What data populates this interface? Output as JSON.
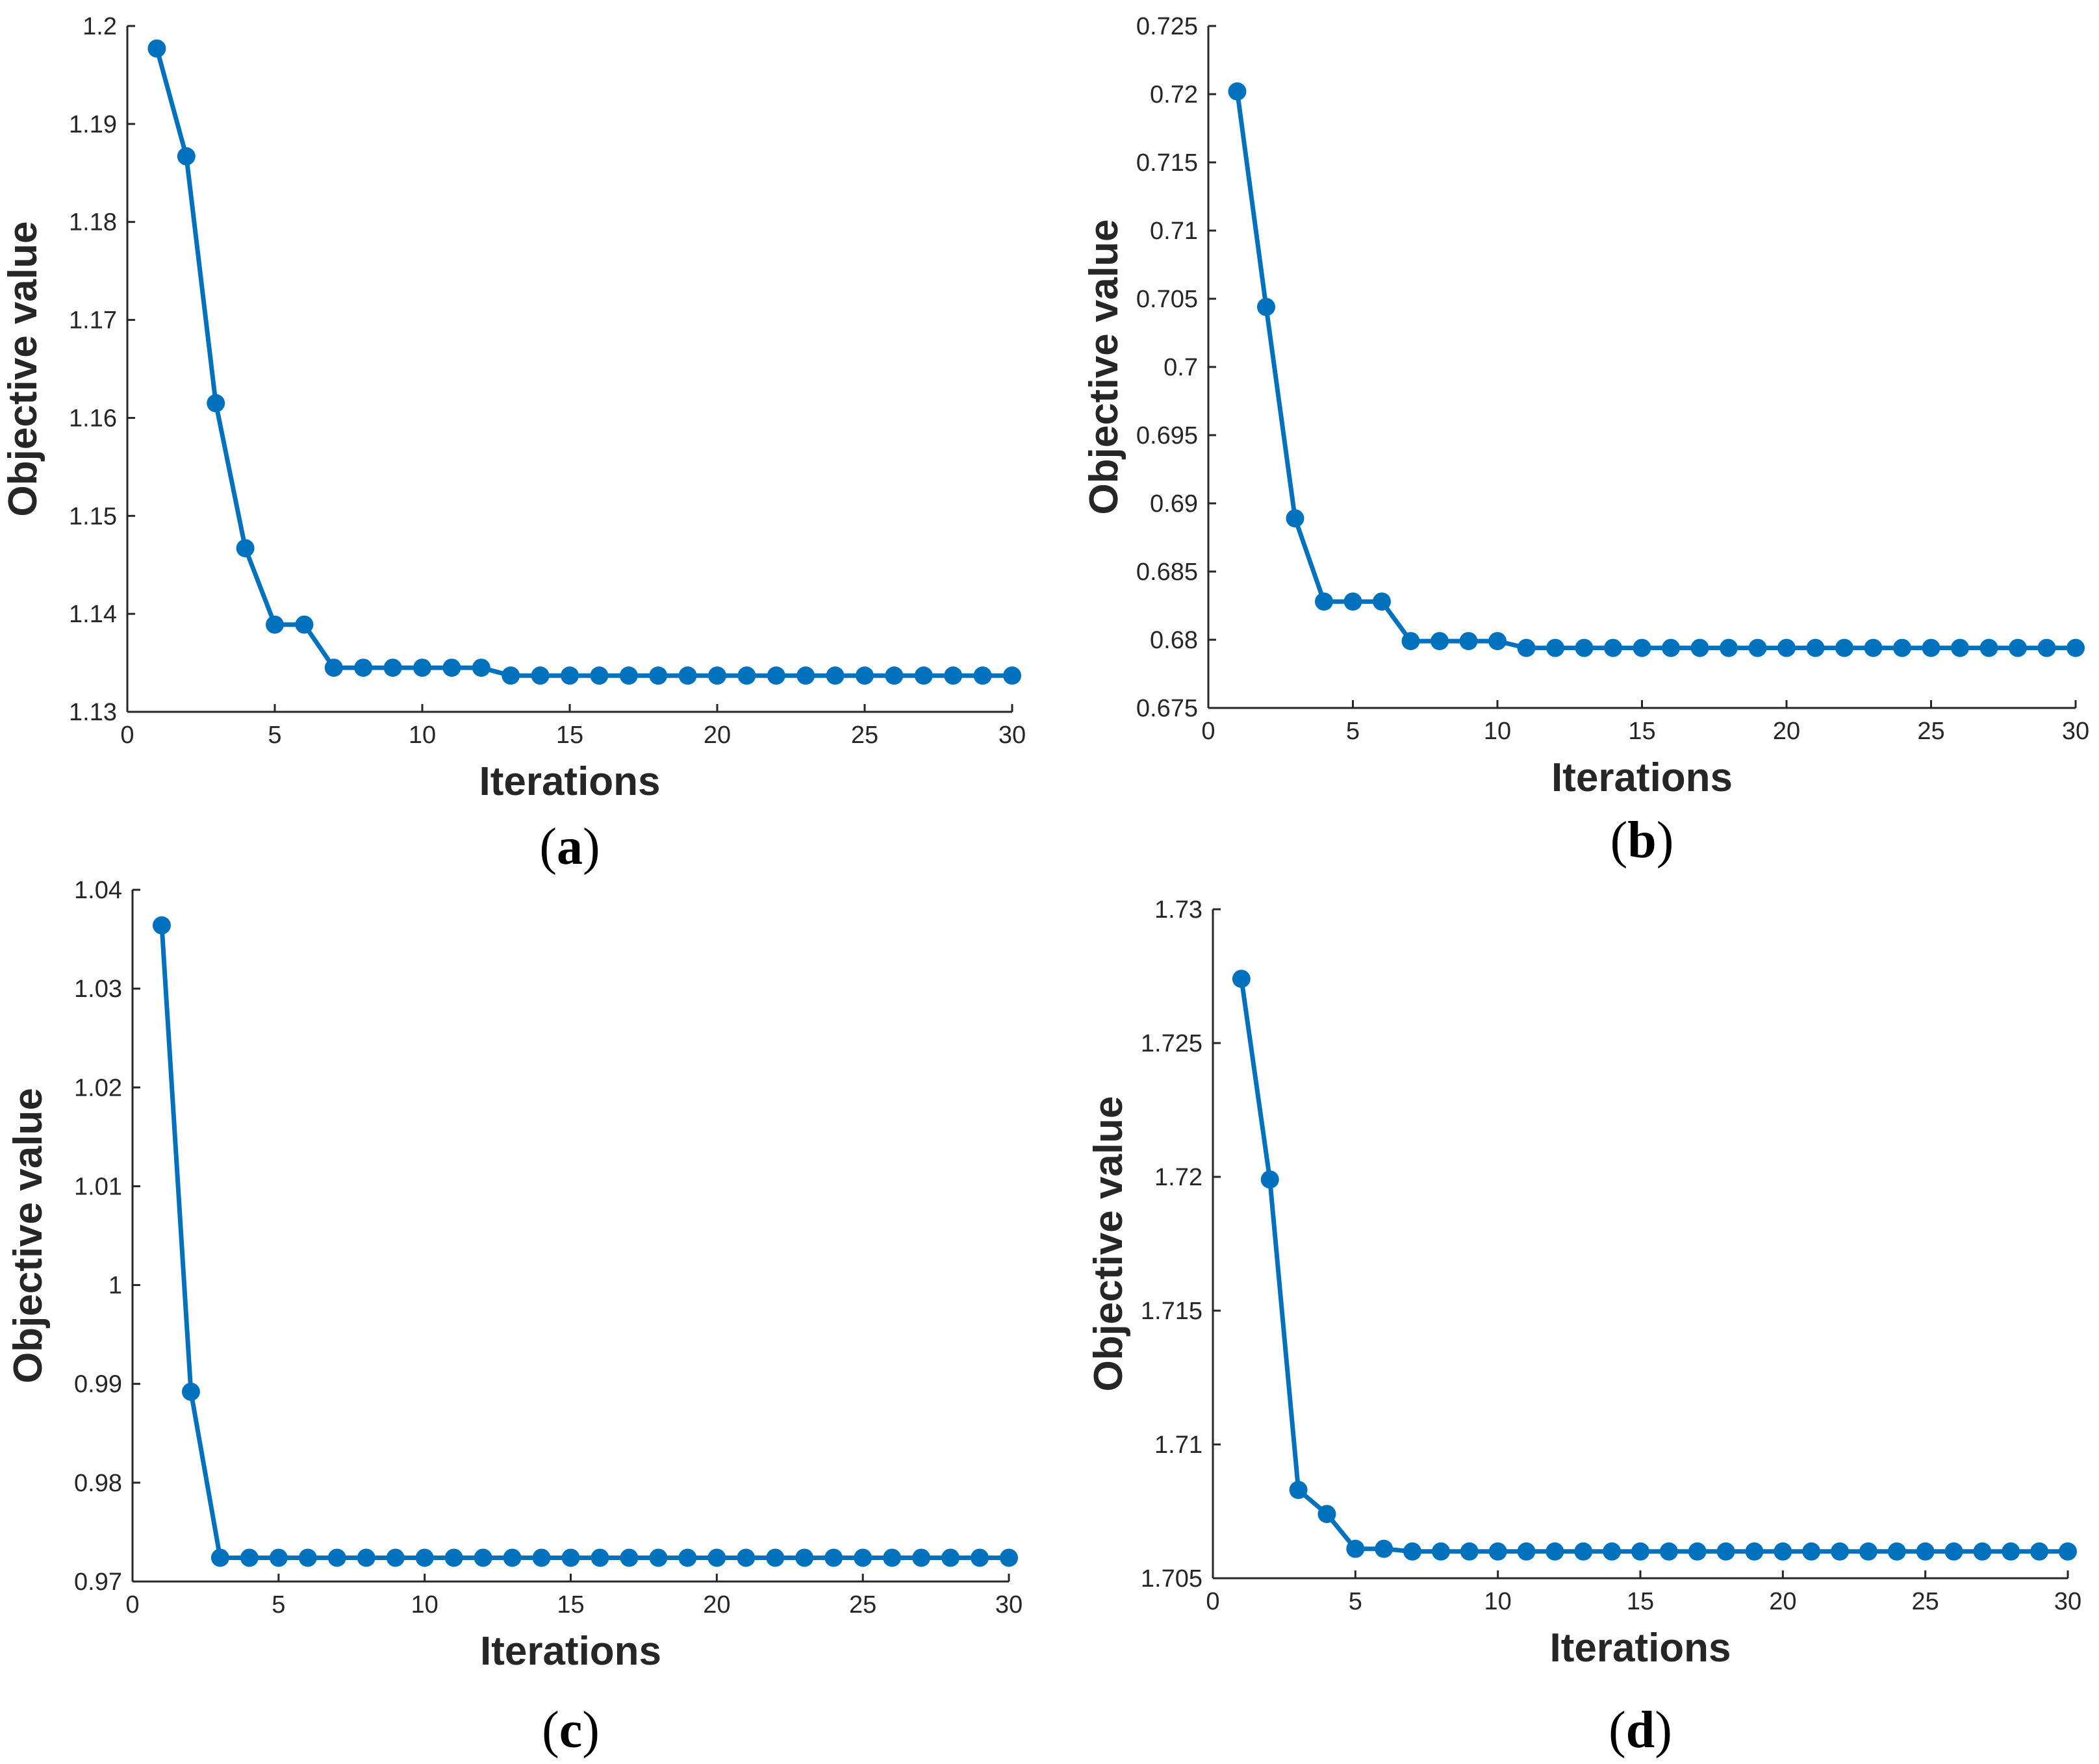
{
  "chart_data": [
    {
      "type": "line",
      "panel_label": "a",
      "xlabel": "Iterations",
      "ylabel": "Objective value",
      "xlim": [
        0,
        30
      ],
      "ylim": [
        1.13,
        1.2
      ],
      "xticks": [
        0,
        5,
        10,
        15,
        20,
        25,
        30
      ],
      "yticks": [
        1.13,
        1.14,
        1.15,
        1.16,
        1.17,
        1.18,
        1.19,
        1.2
      ],
      "ytick_labels": [
        "1.13",
        "1.14",
        "1.15",
        "1.16",
        "1.17",
        "1.18",
        "1.19",
        "1.2"
      ],
      "grid": false,
      "color": "#0072BD",
      "series": [
        {
          "name": "Objective value",
          "x": [
            1,
            2,
            3,
            4,
            5,
            6,
            7,
            8,
            9,
            10,
            11,
            12,
            13,
            14,
            15,
            16,
            17,
            18,
            19,
            20,
            21,
            22,
            23,
            24,
            25,
            26,
            27,
            28,
            29,
            30
          ],
          "values": [
            1.1977,
            1.1867,
            1.1615,
            1.1467,
            1.1389,
            1.1389,
            1.1345,
            1.1345,
            1.1345,
            1.1345,
            1.1345,
            1.1345,
            1.1337,
            1.1337,
            1.1337,
            1.1337,
            1.1337,
            1.1337,
            1.1337,
            1.1337,
            1.1337,
            1.1337,
            1.1337,
            1.1337,
            1.1337,
            1.1337,
            1.1337,
            1.1337,
            1.1337,
            1.1337
          ]
        }
      ]
    },
    {
      "type": "line",
      "panel_label": "b",
      "xlabel": "Iterations",
      "ylabel": "Objective value",
      "xlim": [
        0,
        30
      ],
      "ylim": [
        0.675,
        0.725
      ],
      "xticks": [
        0,
        5,
        10,
        15,
        20,
        25,
        30
      ],
      "yticks": [
        0.675,
        0.68,
        0.685,
        0.69,
        0.695,
        0.7,
        0.705,
        0.71,
        0.715,
        0.72,
        0.725
      ],
      "ytick_labels": [
        "0.675",
        "0.68",
        "0.685",
        "0.69",
        "0.695",
        "0.7",
        "0.705",
        "0.71",
        "0.715",
        "0.72",
        "0.725"
      ],
      "grid": false,
      "color": "#0072BD",
      "series": [
        {
          "name": "Objective value",
          "x": [
            1,
            2,
            3,
            4,
            5,
            6,
            7,
            8,
            9,
            10,
            11,
            12,
            13,
            14,
            15,
            16,
            17,
            18,
            19,
            20,
            21,
            22,
            23,
            24,
            25,
            26,
            27,
            28,
            29,
            30
          ],
          "values": [
            0.7202,
            0.7044,
            0.6889,
            0.6828,
            0.6828,
            0.6828,
            0.6799,
            0.6799,
            0.6799,
            0.6799,
            0.6794,
            0.6794,
            0.6794,
            0.6794,
            0.6794,
            0.6794,
            0.6794,
            0.6794,
            0.6794,
            0.6794,
            0.6794,
            0.6794,
            0.6794,
            0.6794,
            0.6794,
            0.6794,
            0.6794,
            0.6794,
            0.6794,
            0.6794
          ]
        }
      ]
    },
    {
      "type": "line",
      "panel_label": "c",
      "xlabel": "Iterations",
      "ylabel": "Objective value",
      "xlim": [
        0,
        30
      ],
      "ylim": [
        0.97,
        1.04
      ],
      "xticks": [
        0,
        5,
        10,
        15,
        20,
        25,
        30
      ],
      "yticks": [
        0.97,
        0.98,
        0.99,
        1.0,
        1.01,
        1.02,
        1.03,
        1.04
      ],
      "ytick_labels": [
        "0.97",
        "0.98",
        "0.99",
        "1",
        "1.01",
        "1.02",
        "1.03",
        "1.04"
      ],
      "grid": false,
      "color": "#0072BD",
      "series": [
        {
          "name": "Objective value",
          "x": [
            1,
            2,
            3,
            4,
            5,
            6,
            7,
            8,
            9,
            10,
            11,
            12,
            13,
            14,
            15,
            16,
            17,
            18,
            19,
            20,
            21,
            22,
            23,
            24,
            25,
            26,
            27,
            28,
            29,
            30
          ],
          "values": [
            1.0364,
            0.9892,
            0.9724,
            0.9724,
            0.9724,
            0.9724,
            0.9724,
            0.9724,
            0.9724,
            0.9724,
            0.9724,
            0.9724,
            0.9724,
            0.9724,
            0.9724,
            0.9724,
            0.9724,
            0.9724,
            0.9724,
            0.9724,
            0.9724,
            0.9724,
            0.9724,
            0.9724,
            0.9724,
            0.9724,
            0.9724,
            0.9724,
            0.9724,
            0.9724
          ]
        }
      ]
    },
    {
      "type": "line",
      "panel_label": "d",
      "xlabel": "Iterations",
      "ylabel": "Objective value",
      "xlim": [
        0,
        30
      ],
      "ylim": [
        1.705,
        1.73
      ],
      "xticks": [
        0,
        5,
        10,
        15,
        20,
        25,
        30
      ],
      "yticks": [
        1.705,
        1.71,
        1.715,
        1.72,
        1.725,
        1.73
      ],
      "ytick_labels": [
        "1.705",
        "1.71",
        "1.715",
        "1.72",
        "1.725",
        "1.73"
      ],
      "grid": false,
      "color": "#0072BD",
      "series": [
        {
          "name": "Objective value",
          "x": [
            1,
            2,
            3,
            4,
            5,
            6,
            7,
            8,
            9,
            10,
            11,
            12,
            13,
            14,
            15,
            16,
            17,
            18,
            19,
            20,
            21,
            22,
            23,
            24,
            25,
            26,
            27,
            28,
            29,
            30
          ],
          "values": [
            1.7274,
            1.7199,
            1.7083,
            1.7074,
            1.7061,
            1.7061,
            1.706,
            1.706,
            1.706,
            1.706,
            1.706,
            1.706,
            1.706,
            1.706,
            1.706,
            1.706,
            1.706,
            1.706,
            1.706,
            1.706,
            1.706,
            1.706,
            1.706,
            1.706,
            1.706,
            1.706,
            1.706,
            1.706,
            1.706,
            1.706
          ]
        }
      ]
    }
  ]
}
